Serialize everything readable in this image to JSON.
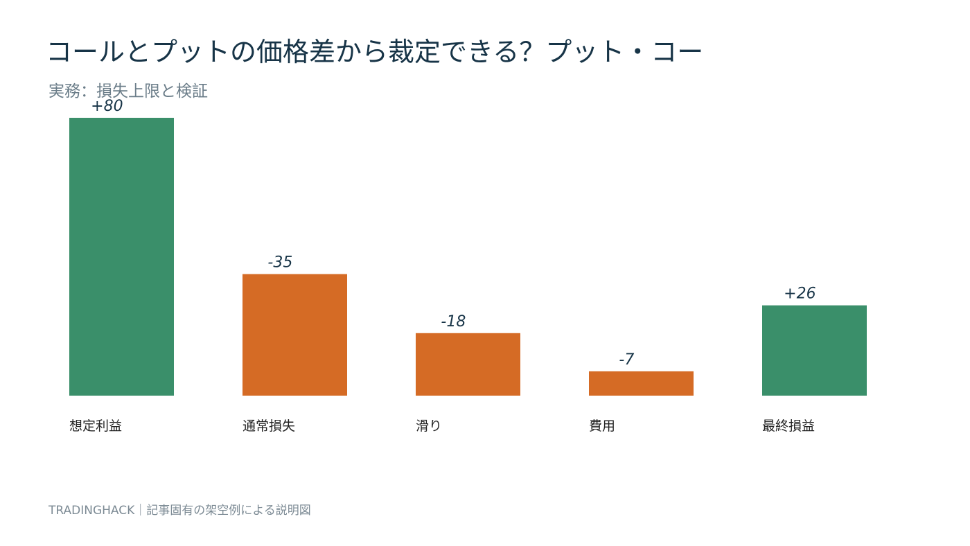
{
  "header": {
    "title": "コールとプットの価格差から裁定できる？プット・コー",
    "subtitle": "実務：損失上限と検証"
  },
  "footer": {
    "text": "TRADINGHACK｜記事固有の架空例による説明図"
  },
  "colors": {
    "positive": "#3a8f6a",
    "negative": "#d56b25",
    "label": "#173447",
    "category": "#222222"
  },
  "chart_data": {
    "type": "bar",
    "categories": [
      "想定利益",
      "通常損失",
      "滑り",
      "費用",
      "最終損益"
    ],
    "values": [
      80,
      -35,
      -18,
      -7,
      26
    ],
    "data_labels": [
      "+80",
      "-35",
      "-18",
      "-7",
      "+26"
    ],
    "title": "",
    "xlabel": "",
    "ylabel": "",
    "grid": false,
    "legend": "none"
  }
}
